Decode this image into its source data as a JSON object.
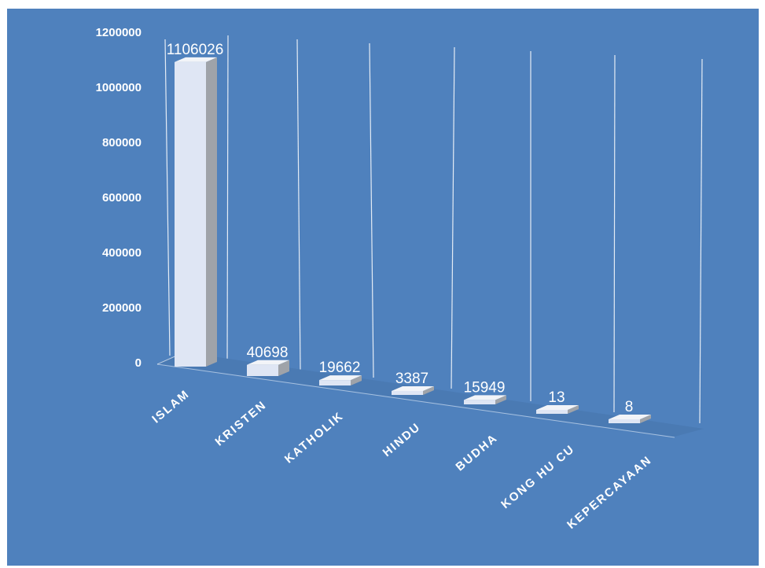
{
  "page": {
    "header_partial": ""
  },
  "chart_data": {
    "type": "bar",
    "style": "3d-column",
    "title": "",
    "xlabel": "",
    "ylabel": "",
    "categories": [
      "ISLAM",
      "KRISTEN",
      "KATHOLIK",
      "HINDU",
      "BUDHA",
      "KONG HU CU",
      "KEPERCAYAAN"
    ],
    "values": [
      1106026,
      40698,
      19662,
      3387,
      15949,
      13,
      8
    ],
    "data_labels": [
      "1106026",
      "40698",
      "19662",
      "3387",
      "15949",
      "13",
      "8"
    ],
    "y_ticks": [
      "0",
      "200000",
      "400000",
      "600000",
      "800000",
      "1000000",
      "1200000"
    ],
    "ylim": [
      0,
      1200000
    ],
    "grid": true,
    "legend": "none",
    "colors": {
      "background": "#4f81bd",
      "bar_front": "#dfe6f4",
      "bar_side": "#9fa3a9",
      "bar_top": "#f2f4f8",
      "text": "#ffffff",
      "gridline": "#ffffff"
    }
  }
}
